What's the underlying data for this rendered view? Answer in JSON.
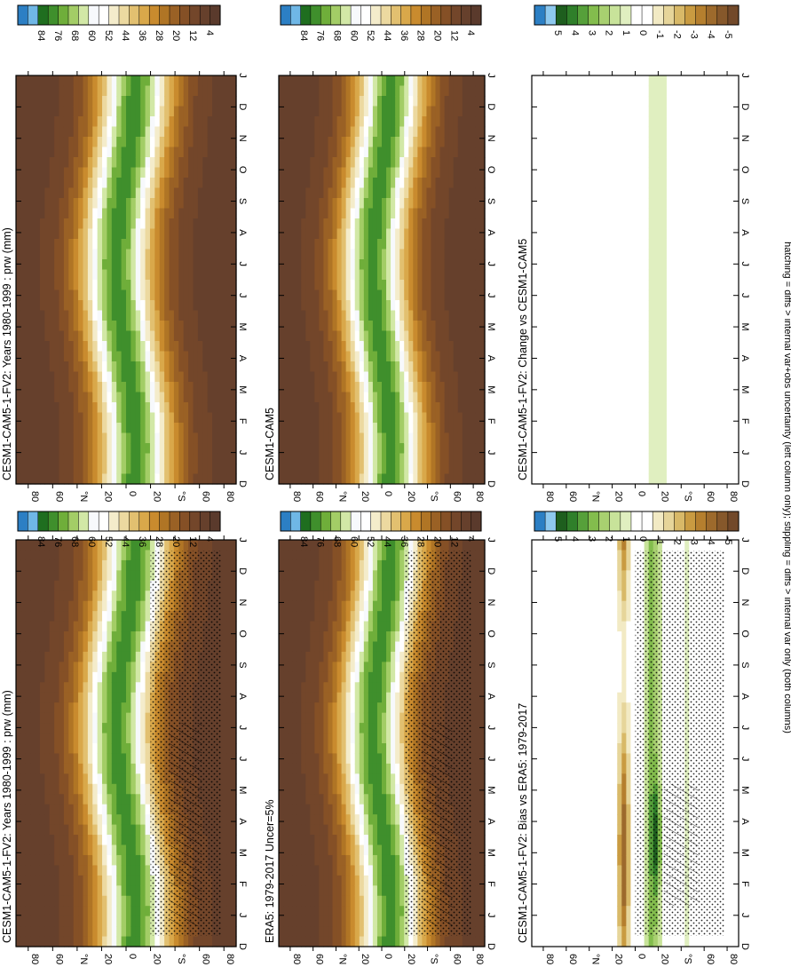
{
  "footnote": "hatching = diffs > internal var+obs uncertainty (left column only); stippling = diffs > internal var only (both columns)",
  "chart_data": [
    {
      "type": "heatmap",
      "panel": "left-top",
      "title": "CESM1-CAM5-1-FV2: Years 1980-1999 : prw (mm)",
      "x_ticks": [
        "D",
        "J",
        "F",
        "M",
        "A",
        "M",
        "J",
        "J",
        "A",
        "S",
        "O",
        "N",
        "D",
        "J"
      ],
      "y_ticks": [
        "80",
        "60",
        "°N",
        "20",
        "0",
        "20",
        "°S",
        "60",
        "80"
      ],
      "colorbar": [
        "84",
        "76",
        "68",
        "60",
        "52",
        "44",
        "36",
        "28",
        "20",
        "12",
        "4"
      ],
      "fill": "precipitable water, moist tropics to dry poles",
      "markings": "stippling and hatching over southern latitudes"
    },
    {
      "type": "heatmap",
      "panel": "left-middle",
      "title": "ERA5: 1979-2017 Uncer=5%",
      "x_ticks": [
        "D",
        "J",
        "F",
        "M",
        "A",
        "M",
        "J",
        "J",
        "A",
        "S",
        "O",
        "N",
        "D",
        "J"
      ],
      "y_ticks": [
        "80",
        "60",
        "°N",
        "20",
        "0",
        "20",
        "°S",
        "60",
        "80"
      ],
      "colorbar": [
        "84",
        "76",
        "68",
        "60",
        "52",
        "44",
        "36",
        "28",
        "20",
        "12",
        "4"
      ],
      "fill": "precipitable water",
      "markings": "stippling and hatching over southern latitudes"
    },
    {
      "type": "heatmap",
      "panel": "left-bottom",
      "title": "CESM1-CAM5-1-FV2: Bias vs ERA5: 1979-2017",
      "x_ticks": [
        "D",
        "J",
        "F",
        "M",
        "A",
        "M",
        "J",
        "J",
        "A",
        "S",
        "O",
        "N",
        "D",
        "J"
      ],
      "y_ticks": [
        "80",
        "60",
        "°N",
        "20",
        "0",
        "20",
        "°S",
        "60",
        "80"
      ],
      "colorbar": [
        "5",
        "4",
        "3",
        "2",
        "1",
        "0",
        "-1",
        "-2",
        "-3",
        "-4",
        "-5"
      ],
      "fill": "difference, brown dry bias near 10N, green moist bias 20S",
      "markings": "dense stippling over southern tropics"
    },
    {
      "type": "heatmap",
      "panel": "right-top",
      "title": "CESM1-CAM5-1-FV2: Years 1980-1999 : prw (mm)",
      "x_ticks": [
        "D",
        "J",
        "F",
        "M",
        "A",
        "M",
        "J",
        "J",
        "A",
        "S",
        "O",
        "N",
        "D",
        "J"
      ],
      "y_ticks": [
        "80",
        "60",
        "°N",
        "20",
        "0",
        "20",
        "°S",
        "60",
        "80"
      ],
      "colorbar": [
        "84",
        "76",
        "68",
        "60",
        "52",
        "44",
        "36",
        "28",
        "20",
        "12",
        "4"
      ],
      "fill": "precipitable water"
    },
    {
      "type": "heatmap",
      "panel": "right-middle",
      "title": "CESM1-CAM5",
      "x_ticks": [
        "D",
        "J",
        "F",
        "M",
        "A",
        "M",
        "J",
        "J",
        "A",
        "S",
        "O",
        "N",
        "D",
        "J"
      ],
      "y_ticks": [
        "80",
        "60",
        "°N",
        "20",
        "0",
        "20",
        "°S",
        "60",
        "80"
      ],
      "colorbar": [
        "84",
        "76",
        "68",
        "60",
        "52",
        "44",
        "36",
        "28",
        "20",
        "12",
        "4"
      ],
      "fill": "precipitable water"
    },
    {
      "type": "heatmap",
      "panel": "right-bottom",
      "title": "CESM1-CAM5-1-FV2: Change vs CESM1-CAM5",
      "x_ticks": [
        "D",
        "J",
        "F",
        "M",
        "A",
        "M",
        "J",
        "J",
        "A",
        "S",
        "O",
        "N",
        "D",
        "J"
      ],
      "y_ticks": [
        "80",
        "60",
        "°N",
        "20",
        "0",
        "20",
        "°S",
        "60",
        "80"
      ],
      "colorbar": [
        "5",
        "4",
        "3",
        "2",
        "1",
        "0",
        "-1",
        "-2",
        "-3",
        "-4",
        "-5"
      ],
      "fill": "difference, weak green across southern tropics"
    }
  ],
  "colors": {
    "abs_scale": [
      "#2c7fc4",
      "#6fb7e6",
      "#1f6e1f",
      "#3f8f2c",
      "#6fae3a",
      "#a3cd66",
      "#d2e8a6",
      "#f7f9fc",
      "#ffffff",
      "#f4eccb",
      "#ecd9a0",
      "#e2c070",
      "#d9a84a",
      "#c98b2e",
      "#b07525",
      "#9a6125",
      "#855026",
      "#73462a",
      "#66402c",
      "#5a3a2c"
    ],
    "diff_scale": [
      "#2c7fc4",
      "#8ec9ef",
      "#1e5e1e",
      "#2f7f2a",
      "#56a03a",
      "#83bd4d",
      "#a8d070",
      "#c8e39a",
      "#e0efc0",
      "#ffffff",
      "#ffffff",
      "#f2eac4",
      "#e6d59a",
      "#d8b968",
      "#c99b41",
      "#b57f2e",
      "#9d6a2c",
      "#86582b",
      "#72492a"
    ]
  }
}
